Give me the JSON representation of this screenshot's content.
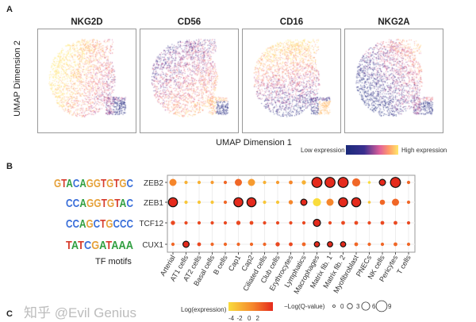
{
  "panel_a": {
    "label": "A",
    "markers": [
      "NKG2D",
      "CD56",
      "CD16",
      "NKG2A"
    ],
    "xlabel": "UMAP Dimension 1",
    "ylabel": "UMAP Dimension 2",
    "legend": {
      "low": "Low expression",
      "high": "High expression",
      "colors": [
        "#1a2a7a",
        "#3a2f8f",
        "#e0609a",
        "#ff9a6a",
        "#ffe86a"
      ]
    }
  },
  "panel_b": {
    "label": "B",
    "motifs_label": "TF motifs",
    "motifs": [
      "GTACAGGTGTGC",
      "CCAGGTGTAC",
      "CCAGCTGCCC",
      "TATCGATAAA"
    ],
    "legend": {
      "expression_title": "Log(expression)",
      "expression_ticks": [
        "-4",
        "-2",
        "0",
        "2"
      ],
      "qvalue_title": "−Log(Q-value)",
      "qvalue_ticks": [
        "0",
        "3",
        "6",
        "9"
      ]
    }
  },
  "panel_c": {
    "label": "C"
  },
  "watermark": "知乎 @Evil Genius",
  "chart_data": {
    "type": "dotplot",
    "categories": [
      "Arterial",
      "AT1 cells",
      "AT2 cells",
      "Basal cells",
      "B cells",
      "Cap1",
      "Cap2",
      "Ciliated cells",
      "Club cells",
      "Erythrocytes",
      "Lymphatics",
      "Macrophages",
      "Matrix fib. 1",
      "Matrix fib. 2",
      "Myofibroblast",
      "PNECs",
      "NK cells",
      "Pericytes",
      "T cells"
    ],
    "rows": [
      {
        "tf": "ZEB2",
        "neg_log_q": [
          5,
          1,
          1,
          1,
          1,
          5,
          5,
          1,
          1,
          1.5,
          2,
          8,
          8,
          8,
          6,
          0.5,
          4,
          8,
          1
        ],
        "log_expression": [
          0,
          -2,
          -2,
          -1,
          1,
          1,
          -1,
          -2,
          -1,
          0,
          -2,
          3,
          3,
          3,
          1,
          -4,
          3,
          3,
          1
        ],
        "outlined": [
          false,
          false,
          false,
          false,
          false,
          false,
          false,
          false,
          false,
          false,
          false,
          true,
          true,
          true,
          false,
          false,
          true,
          true,
          false
        ]
      },
      {
        "tf": "ZEB1",
        "neg_log_q": [
          7,
          1,
          1,
          1,
          1,
          7,
          7,
          1,
          1,
          2,
          4,
          6,
          5,
          7,
          7,
          0.5,
          3,
          5,
          1
        ],
        "log_expression": [
          3,
          -3,
          -3,
          -3,
          1,
          3,
          3,
          -3,
          -3,
          0,
          3,
          -4,
          0,
          3,
          3,
          -3,
          1,
          1,
          1
        ],
        "outlined": [
          true,
          false,
          false,
          false,
          false,
          true,
          true,
          false,
          false,
          false,
          true,
          false,
          false,
          true,
          true,
          false,
          false,
          false,
          false
        ]
      },
      {
        "tf": "TCF12",
        "neg_log_q": [
          2,
          1,
          1,
          1,
          1,
          2,
          1.5,
          1,
          1,
          1,
          1,
          5,
          1,
          1.5,
          1.5,
          1,
          1.5,
          1.5,
          1
        ],
        "log_expression": [
          2,
          2,
          2,
          2,
          2,
          2,
          2,
          2,
          2,
          2,
          2,
          3,
          2,
          2,
          2,
          2,
          2,
          2,
          2
        ],
        "outlined": [
          false,
          false,
          false,
          false,
          false,
          false,
          false,
          false,
          false,
          false,
          false,
          true,
          false,
          false,
          false,
          false,
          false,
          false,
          false
        ]
      },
      {
        "tf": "CUX1",
        "neg_log_q": [
          1,
          4,
          1.5,
          1,
          1,
          1,
          1,
          1,
          2,
          1.5,
          1.5,
          3,
          3,
          3,
          1.5,
          1,
          1,
          1.5,
          1
        ],
        "log_expression": [
          1,
          3,
          2,
          1,
          1,
          1,
          1,
          1,
          2,
          2,
          1,
          3,
          3,
          3,
          1,
          1,
          1,
          1,
          1
        ],
        "outlined": [
          false,
          true,
          false,
          false,
          false,
          false,
          false,
          false,
          false,
          false,
          false,
          true,
          true,
          true,
          false,
          false,
          false,
          false,
          false
        ]
      }
    ],
    "size_legend": [
      0,
      3,
      6,
      9
    ],
    "color_scale": {
      "range": [
        -4,
        3
      ],
      "colors": [
        "#f9dc3c",
        "#f5862c",
        "#e52a1c"
      ]
    },
    "grid": true
  }
}
